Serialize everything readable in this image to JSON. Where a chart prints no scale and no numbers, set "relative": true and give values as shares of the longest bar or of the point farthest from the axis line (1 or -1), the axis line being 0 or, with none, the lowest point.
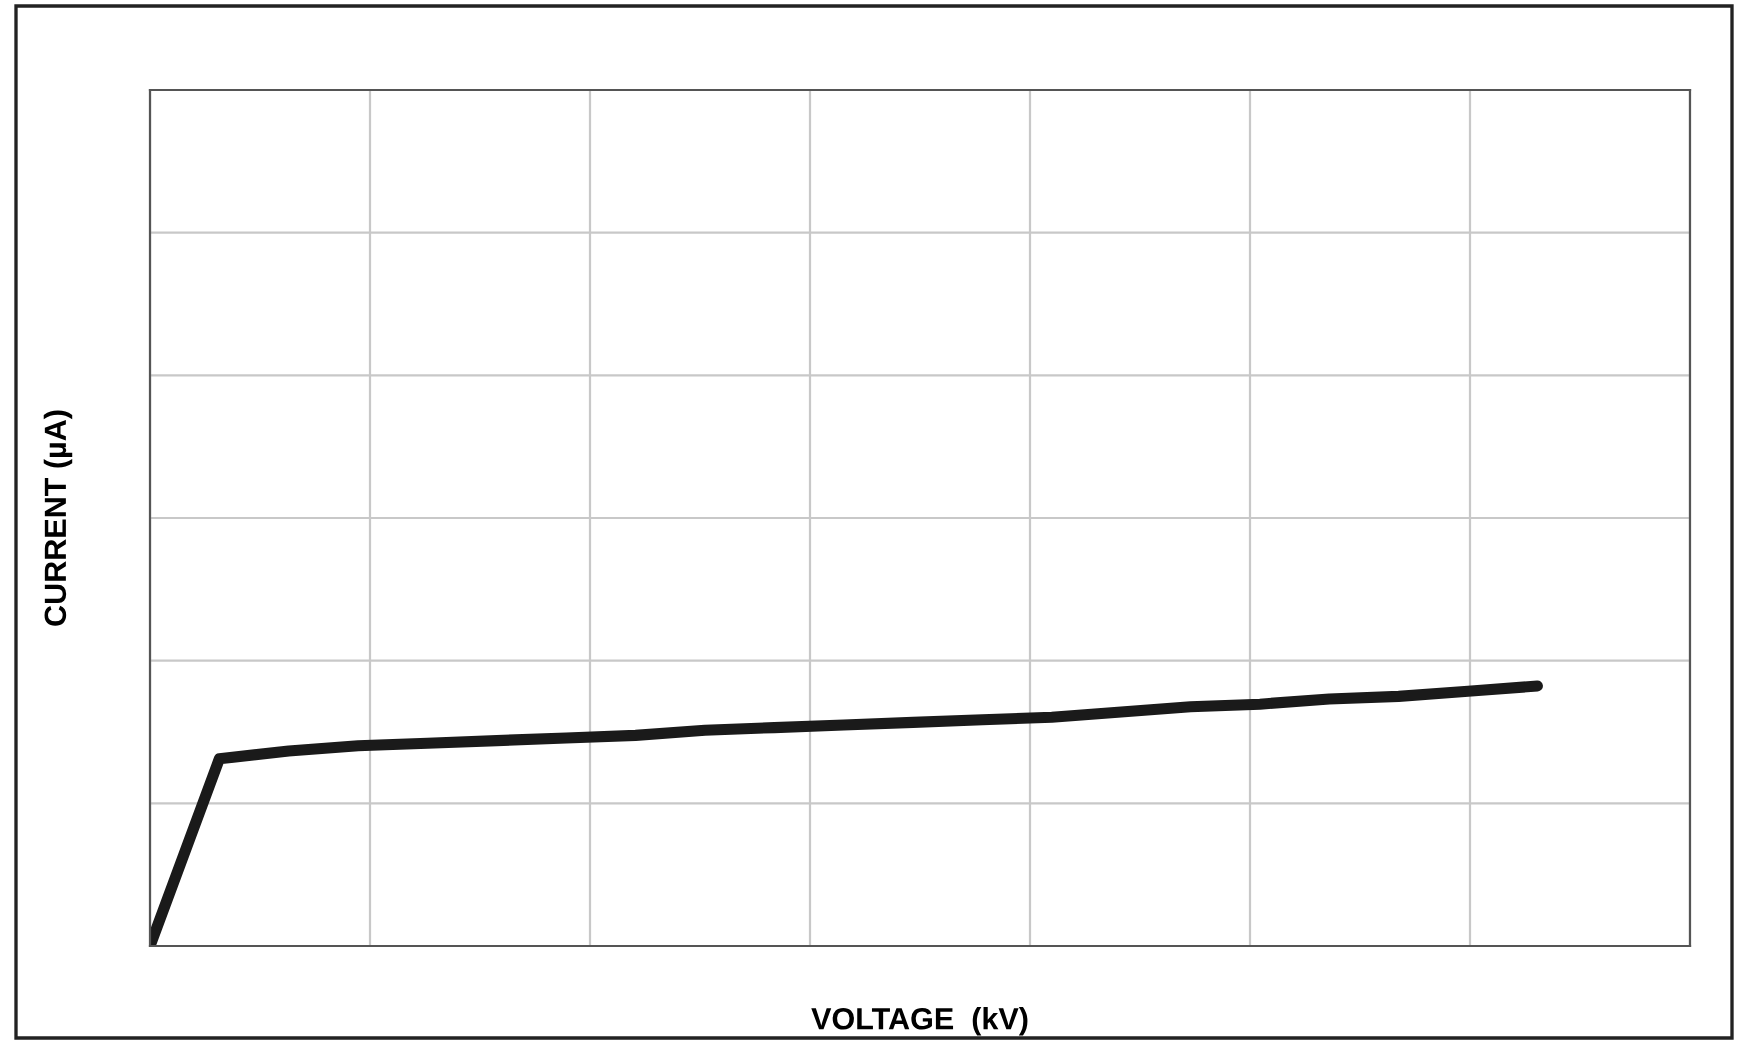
{
  "chart_data": {
    "type": "line",
    "xlabel": "VOLTAGE  (kV)",
    "ylabel": "CURRENT (µA)",
    "relative": true,
    "grid": true,
    "marker": "none",
    "line_style": "solid",
    "categories": [
      null,
      null,
      null,
      null,
      null,
      null,
      null,
      null,
      null,
      null,
      null,
      null,
      null,
      null,
      null,
      null,
      null,
      null,
      null,
      null,
      null,
      null,
      null
    ],
    "series": [
      {
        "color": "#1a1a1a",
        "values": [
          0,
          0.72,
          0.75,
          0.77,
          0.78,
          0.79,
          0.8,
          0.81,
          0.83,
          0.84,
          0.85,
          0.86,
          0.87,
          0.88,
          0.9,
          0.92,
          0.93,
          0.95,
          0.96,
          0.98,
          1,
          null,
          null
        ]
      }
    ]
  }
}
